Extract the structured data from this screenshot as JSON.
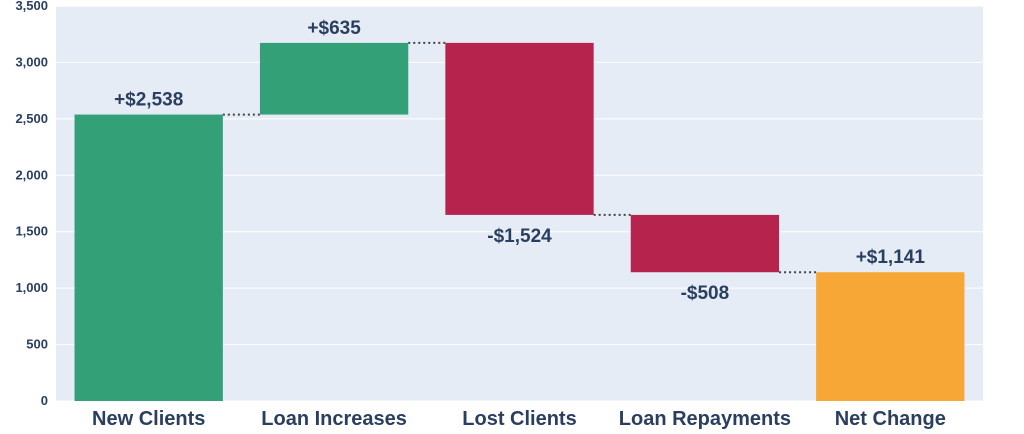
{
  "chart_data": {
    "type": "waterfall",
    "categories": [
      "New Clients",
      "Loan Increases",
      "Lost Clients",
      "Loan Repayments",
      "Net Change"
    ],
    "values": [
      2538,
      635,
      -1524,
      -508,
      1141
    ],
    "measures": [
      "relative",
      "relative",
      "relative",
      "relative",
      "total"
    ],
    "data_labels": [
      "+$2,538",
      "+$635",
      "-$1,524",
      "-$508",
      "+$1,141"
    ],
    "ylim": [
      0,
      3500
    ],
    "yticks": [
      0,
      500,
      1000,
      1500,
      2000,
      2500,
      3000,
      3500
    ],
    "ytick_labels": [
      "0",
      "500",
      "1,000",
      "1,500",
      "2,000",
      "2,500",
      "3,000",
      "3,500"
    ],
    "grid": true,
    "connectors": "dotted",
    "colors": {
      "increase": "#33a077",
      "decrease": "#b6244e",
      "total": "#f6a735",
      "plot_background": "#e5ecf6",
      "grid": "#ffffff",
      "text": "#2a3f5f",
      "connector": "#444444"
    }
  }
}
